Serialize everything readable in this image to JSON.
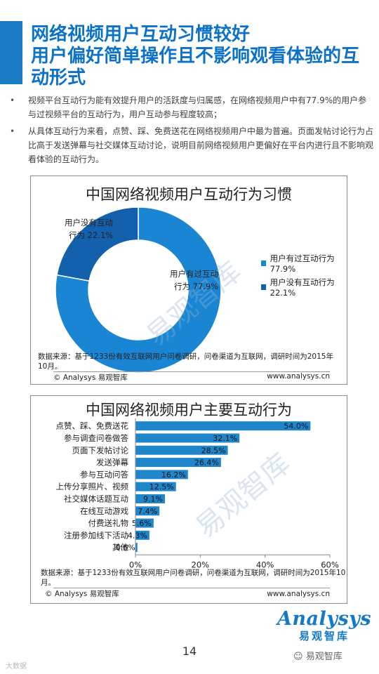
{
  "header": {
    "title_line1": "网络视频用户互动习惯较好",
    "title_line2": "用户偏好简单操作且不影响观看体验的互动形式"
  },
  "bullets": [
    "视频平台互动行为能有效提升用户的活跃度与归属感，在网络视频用户中有77.9%的用户参与过视频平台的互动行为，用户互动参与程度较高；",
    "从具体互动行为来看，点赞、踩、免费送花在网络视频用户中最为普遍。页面发帖讨论行为占比高于发送弹幕与社交媒体互动讨论，说明目前网络视频用户更偏好在平台内进行且不影响观看体验的互动行为。"
  ],
  "colors": {
    "accent": "#0c72c8",
    "donut_primary": "#1a86d3",
    "donut_secondary": "#1360ad",
    "bar": "#1f86cc"
  },
  "chart_data": [
    {
      "type": "pie",
      "title": "中国网络视频用户互动行为习惯",
      "categories": [
        "用户有过互动行为",
        "用户没有互动行为"
      ],
      "values": [
        77.9,
        22.1
      ],
      "unit": "%",
      "slice_labels": [
        {
          "line1": "用户有过互动",
          "line2": "行为 77.9%"
        },
        {
          "line1": "用户没有互动",
          "line2": "行为 22.1%"
        }
      ],
      "legend": [
        "用户有过互动行为 77.9%",
        "用户没有互动行为 22.1%"
      ],
      "legend_position": "right",
      "source": "数据来源：基于1233份有效互联网用户问卷调研，问卷渠道为互联网，调研时间为2015年10月。",
      "copyright": "© Analysys 易观智库",
      "website": "www.analysys.cn"
    },
    {
      "type": "bar",
      "orientation": "horizontal",
      "title": "中国网络视频用户主要互动行为",
      "categories": [
        "点赞、踩、免费送花",
        "参与调查问卷做答",
        "页面下发帖讨论",
        "发送弹幕",
        "参与互动问答",
        "上传分享照片、视频",
        "社交媒体话题互动",
        "在线互动游戏",
        "付费送礼物",
        "注册参加线下活动",
        "其他"
      ],
      "values": [
        54.0,
        32.1,
        28.5,
        26.4,
        16.2,
        12.5,
        9.1,
        7.4,
        5.6,
        4.3,
        0.6
      ],
      "value_labels": [
        "54.0%",
        "32.1%",
        "28.5%",
        "26.4%",
        "16.2%",
        "12.5%",
        "9.1%",
        "7.4%",
        "5.6%",
        "4.3%",
        "0.6%"
      ],
      "xlim": [
        0,
        60
      ],
      "xticks": [
        0,
        20,
        40,
        60
      ],
      "xtick_labels": [
        "0%",
        "20%",
        "40%",
        "60%"
      ],
      "grid": false,
      "source": "数据来源：基于1233份有效互联网用户问卷调研，问卷渠道为互联网，调研时间为2015年10月。",
      "copyright": "© Analysys 易观智库",
      "website": "www.analysys.cn"
    }
  ],
  "watermark_text": "易观智库",
  "page_number": "14",
  "brand": {
    "logo_en": "Analysys",
    "logo_cn": "易观智库"
  },
  "wechat_label": "易观智库",
  "corner_mark": "大数据"
}
